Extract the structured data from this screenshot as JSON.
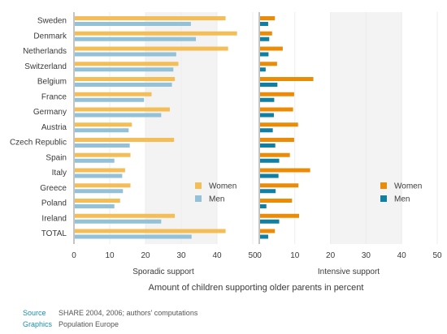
{
  "chart_data": [
    {
      "type": "bar",
      "orientation": "horizontal",
      "xlabel": "Sporadic support",
      "xlim": [
        0,
        50
      ],
      "xticks": [
        0,
        10,
        20,
        30,
        40,
        50
      ],
      "categories": [
        "Sweden",
        "Denmark",
        "Netherlands",
        "Switzerland",
        "Belgium",
        "France",
        "Germany",
        "Austria",
        "Czech Republic",
        "Spain",
        "Italy",
        "Greece",
        "Poland",
        "Ireland",
        "TOTAL"
      ],
      "series": [
        {
          "name": "Women",
          "color": "#f5bd55",
          "values": [
            42.4,
            45.6,
            43.1,
            29.2,
            28.2,
            21.7,
            26.8,
            16.2,
            28.0,
            15.8,
            14.3,
            15.8,
            12.9,
            28.2,
            42.4
          ]
        },
        {
          "name": "Men",
          "color": "#93c2d8",
          "values": [
            32.7,
            34.1,
            28.6,
            27.8,
            27.4,
            19.6,
            24.4,
            15.3,
            15.6,
            11.3,
            13.5,
            13.7,
            11.3,
            24.4,
            32.9
          ]
        }
      ],
      "legend": "right",
      "grid": false
    },
    {
      "type": "bar",
      "orientation": "horizontal",
      "xlabel": "Intensive support",
      "xlim": [
        0,
        50
      ],
      "xticks": [
        0,
        10,
        20,
        30,
        40,
        50
      ],
      "categories": [
        "Sweden",
        "Denmark",
        "Netherlands",
        "Switzerland",
        "Belgium",
        "France",
        "Germany",
        "Austria",
        "Czech Republic",
        "Spain",
        "Italy",
        "Greece",
        "Poland",
        "Ireland",
        "TOTAL"
      ],
      "series": [
        {
          "name": "Women",
          "color": "#ec8c06",
          "values": [
            4.4,
            3.6,
            6.6,
            5.0,
            15.2,
            9.8,
            9.5,
            10.9,
            9.8,
            8.6,
            14.3,
            11.0,
            9.2,
            11.2,
            4.4
          ]
        },
        {
          "name": "Men",
          "color": "#0f7fa3",
          "values": [
            2.5,
            2.8,
            2.6,
            1.8,
            5.1,
            4.2,
            4.1,
            3.8,
            4.5,
            5.6,
            5.4,
            4.6,
            2.0,
            5.6,
            2.5
          ]
        }
      ],
      "legend": "right",
      "grid": false
    }
  ],
  "caption": "Amount of children supporting older parents in percent",
  "footnotes": {
    "source_label": "Source",
    "source_text": "SHARE 2004, 2006; authors' computations",
    "graphics_label": "Graphics",
    "graphics_text": "Population Europe"
  }
}
